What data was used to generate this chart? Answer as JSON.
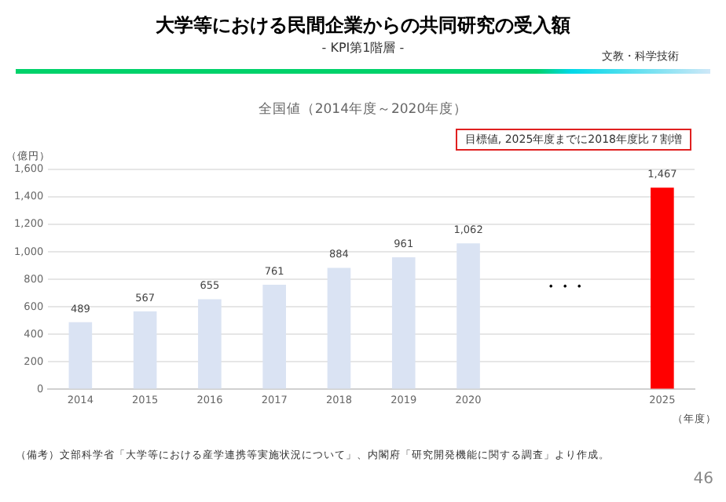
{
  "chart_data": {
    "type": "bar",
    "title": "大学等における民間企業からの共同研究の受入額",
    "subtitle": "- KPI第1階層 -",
    "ylabel": "（億円）",
    "xlabel": "（年度）",
    "categories": [
      "2014",
      "2015",
      "2016",
      "2017",
      "2018",
      "2019",
      "2020",
      null,
      null,
      "2025"
    ],
    "values": [
      489,
      567,
      655,
      761,
      884,
      961,
      1062,
      null,
      null,
      1467
    ],
    "colors": [
      "#dae3f3",
      "#dae3f3",
      "#dae3f3",
      "#dae3f3",
      "#dae3f3",
      "#dae3f3",
      "#dae3f3",
      "#dae3f3",
      "#dae3f3",
      "#ff0000"
    ],
    "value_labels": [
      "489",
      "567",
      "655",
      "761",
      "884",
      "961",
      "1,062",
      null,
      null,
      "1,467"
    ],
    "ylim": [
      0,
      1600
    ],
    "yticks": [
      0,
      200,
      400,
      600,
      800,
      {
        "value": 1000,
        "label": "1,000"
      },
      {
        "value": 1200,
        "label": "1,200"
      },
      {
        "value": 1400,
        "label": "1,400"
      },
      {
        "value": 1600,
        "label": "1,600"
      }
    ],
    "grid": "y",
    "legend": false,
    "annotations": [
      "文教・科学技術",
      "全国値（2014年度～2020年度）",
      "目標値, 2025年度までに2018年度比７割増",
      "・・・",
      "（備考）文部科学省「大学等における産学連携等実施状況について」、内閣府「研究開発機能に関する調査」より作成。",
      "46"
    ]
  }
}
